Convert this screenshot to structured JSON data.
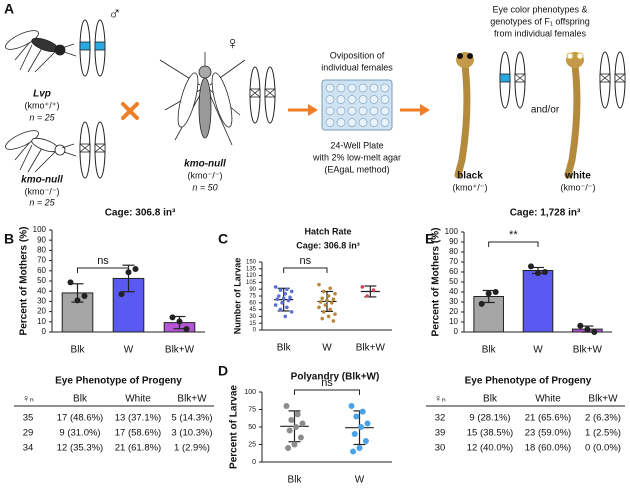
{
  "panel_a": {
    "label": "A",
    "male_symbol": "♂",
    "female_symbol": "♀",
    "lvp_name": "Lvp",
    "lvp_genotype": "(kmo⁺/⁺)",
    "lvp_n": "n = 25",
    "null_male_name": "kmo-null",
    "null_male_genotype": "(kmo⁻/⁻)",
    "null_male_n": "n = 25",
    "null_female_name": "kmo-null",
    "null_female_genotype": "(kmo⁻/⁻)",
    "null_female_n": "n = 50",
    "oviposition": [
      "Oviposition of",
      "individual females"
    ],
    "plate_caption": [
      "24-Well Plate",
      "with 2% low-melt agar",
      "(EAgaL method)"
    ],
    "offspring_caption": [
      "Eye color phenotypes &",
      "genotypes of F₁ offspring",
      "from individual females"
    ],
    "black_label": "black",
    "black_genotype": "(kmo⁺/⁻)",
    "andor": "and/or",
    "white_label": "white",
    "white_genotype": "(kmo⁻/⁻)"
  },
  "chart_data": [
    {
      "type": "bar",
      "panel": "B",
      "title": "Cage: 306.8 in³",
      "annotation": "ns",
      "xlabel": "Eye Phenotype of Progeny",
      "ylabel": "Percent of Mothers (%)",
      "categories": [
        "Blk",
        "W",
        "Blk+W"
      ],
      "values": [
        38.3,
        52.5,
        9.2
      ],
      "errors": [
        9,
        13,
        6
      ],
      "colors": [
        "#a6a6a6",
        "#5a5af2",
        "#b455d6"
      ],
      "points": [
        [
          48.6,
          31.0,
          35.3
        ],
        [
          37.1,
          58.6,
          61.8
        ],
        [
          14.3,
          10.3,
          2.9
        ]
      ],
      "ylim": [
        0,
        100
      ],
      "yticks": [
        0,
        10,
        20,
        30,
        40,
        50,
        60,
        70,
        80,
        90,
        100
      ]
    },
    {
      "type": "strip",
      "panel": "C",
      "title": "Hatch Rate",
      "subtitle": "Cage: 306.8 in³",
      "annotation": "ns",
      "ylabel": "Number of Larvae",
      "categories": [
        "Blk",
        "W",
        "Blk+W"
      ],
      "values": [
        67,
        63,
        85
      ],
      "errors": [
        25,
        22,
        12
      ],
      "colors": [
        "#5a6fd8",
        "#b7863a",
        "#d9405a"
      ],
      "points": [
        [
          95,
          90,
          88,
          85,
          80,
          75,
          72,
          70,
          68,
          65,
          60,
          55,
          50,
          45,
          40,
          30
        ],
        [
          100,
          92,
          85,
          80,
          75,
          70,
          68,
          65,
          62,
          60,
          55,
          50,
          45,
          40,
          35,
          30,
          25,
          20
        ],
        [
          95,
          88,
          75
        ]
      ],
      "ylim": [
        0,
        150
      ],
      "yticks": [
        0,
        15,
        30,
        45,
        60,
        75,
        90,
        105,
        120,
        135,
        150
      ]
    },
    {
      "type": "strip",
      "panel": "D",
      "title": "Polyandry (Blk+W)",
      "annotation": "ns",
      "ylabel": "Percent of Larvae",
      "categories": [
        "Blk",
        "W"
      ],
      "values": [
        51,
        49
      ],
      "errors": [
        22,
        24
      ],
      "colors": [
        "#8c8c8c",
        "#4aa3e8"
      ],
      "points": [
        [
          80,
          68,
          60,
          55,
          50,
          45,
          35,
          25,
          20
        ],
        [
          80,
          72,
          65,
          55,
          50,
          40,
          30,
          20,
          15
        ]
      ],
      "ylim": [
        0,
        100
      ],
      "yticks": [
        0,
        25,
        50,
        75,
        100
      ]
    },
    {
      "type": "bar",
      "panel": "E",
      "title": "Cage: 1,728 in³",
      "annotation": "**",
      "xlabel": "Eye Phenotype of Progeny",
      "ylabel": "Percent of Mothers (%)",
      "categories": [
        "Blk",
        "W",
        "Blk+W"
      ],
      "values": [
        35.5,
        61.5,
        2.9
      ],
      "errors": [
        6,
        3,
        3
      ],
      "colors": [
        "#a6a6a6",
        "#5a5af2",
        "#b455d6"
      ],
      "points": [
        [
          28.1,
          38.5,
          40.0
        ],
        [
          65.6,
          59.0,
          60.0
        ],
        [
          6.3,
          2.5,
          0.0
        ]
      ],
      "ylim": [
        0,
        100
      ],
      "yticks": [
        0,
        10,
        20,
        30,
        40,
        50,
        60,
        70,
        80,
        90,
        100
      ]
    }
  ],
  "table_b": {
    "header": [
      "♀ₙ",
      "Blk",
      "White",
      "Blk+W"
    ],
    "rows": [
      [
        "35",
        "17 (48.6%)",
        "13 (37.1%)",
        "5 (14.3%)"
      ],
      [
        "29",
        "9 (31.0%)",
        "17 (58.6%)",
        "3 (10.3%)"
      ],
      [
        "34",
        "12 (35.3%)",
        "21 (61.8%)",
        "1 (2.9%)"
      ]
    ]
  },
  "table_e": {
    "header": [
      "♀ₙ",
      "Blk",
      "White",
      "Blk+W"
    ],
    "rows": [
      [
        "32",
        "9 (28.1%)",
        "21 (65.6%)",
        "2 (6.3%)"
      ],
      [
        "39",
        "15 (38.5%)",
        "23 (59.0%)",
        "1 (2.5%)"
      ],
      [
        "30",
        "12 (40.0%)",
        "18 (60.0%)",
        "0 (0.0%)"
      ]
    ]
  }
}
